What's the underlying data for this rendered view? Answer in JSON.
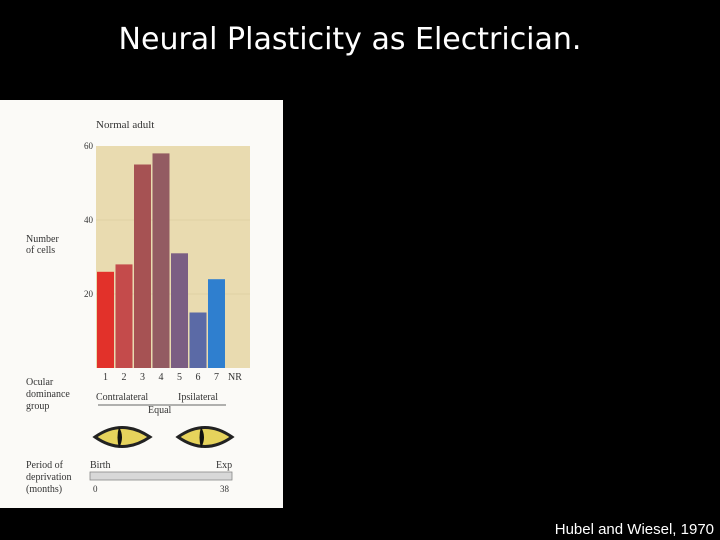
{
  "slide": {
    "title": "Neural Plasticity as Electrician.",
    "citation": "Hubel and Wiesel, 1970"
  },
  "chart_data": {
    "type": "bar",
    "title": "Normal adult",
    "ylabel_lines": [
      "Number",
      "of cells"
    ],
    "categories": [
      "1",
      "2",
      "3",
      "4",
      "5",
      "6",
      "7"
    ],
    "values": [
      26,
      28,
      55,
      58,
      31,
      15,
      24
    ],
    "extra_category": "NR",
    "ylim": [
      0,
      60
    ],
    "yticks": [
      20,
      40,
      60
    ],
    "xlabel_lines": [
      "Ocular",
      "dominance",
      "group"
    ],
    "annotations": {
      "left": "Contralateral",
      "center": "Equal",
      "right": "Ipsilateral"
    },
    "bar_colors": [
      "#e2312a",
      "#c44b4b",
      "#a65253",
      "#935b62",
      "#7b5e83",
      "#5b6aa6",
      "#2f7fcf"
    ],
    "deprivation": {
      "label_lines": [
        "Period of",
        "deprivation",
        "(months)"
      ],
      "start_label": "Birth",
      "end_label": "Exp",
      "start_value": "0",
      "end_value": "38"
    },
    "grid": false
  }
}
